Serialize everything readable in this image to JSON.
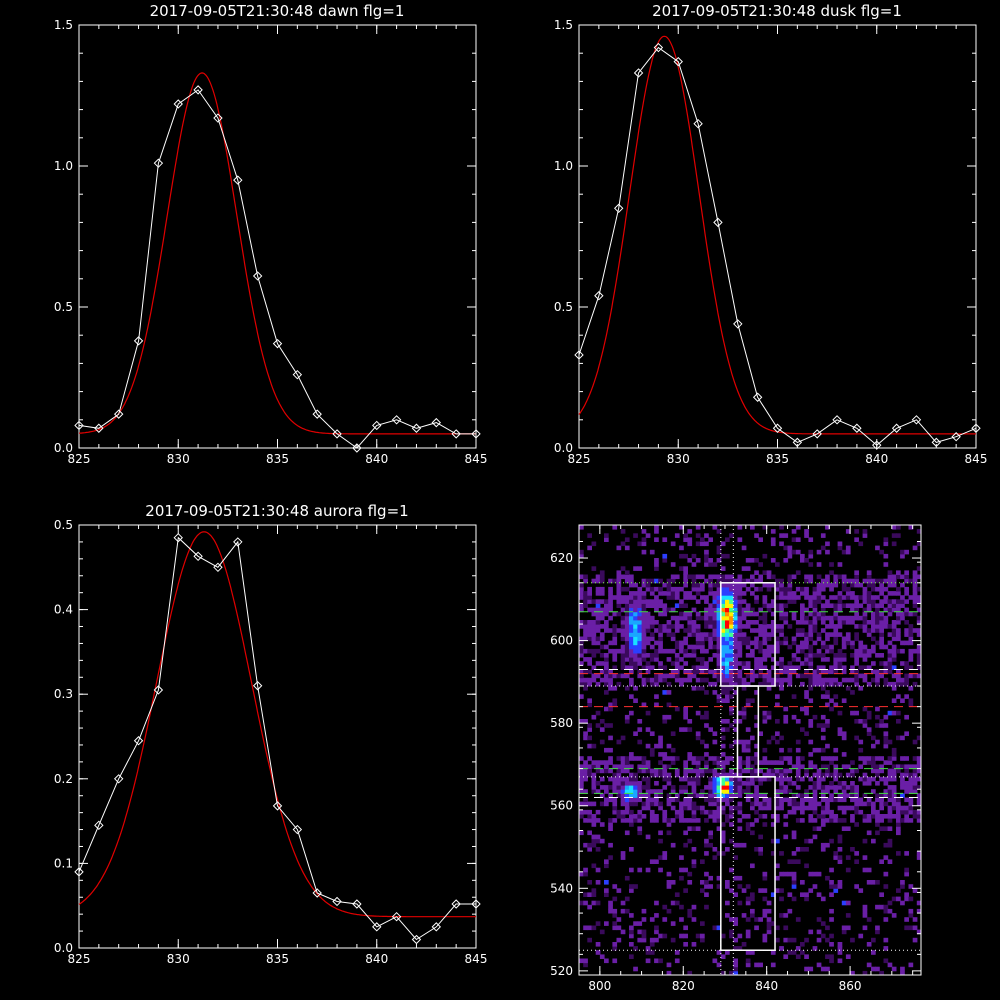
{
  "chart_data": [
    {
      "type": "line",
      "title": "2017-09-05T21:30:48 dawn flg=1",
      "xlim": [
        825,
        845
      ],
      "ylim": [
        0,
        1.5
      ],
      "xticks": [
        "825",
        "830",
        "835",
        "840",
        "845"
      ],
      "yticks": [
        "0.0",
        "0.5",
        "1.0",
        "1.5"
      ],
      "series": [
        {
          "role": "data",
          "color": "#ffffff",
          "x": [
            825,
            826,
            827,
            828,
            829,
            830,
            831,
            832,
            833,
            834,
            835,
            836,
            837,
            838,
            839,
            840,
            841,
            842,
            843,
            844,
            845
          ],
          "y": [
            0.08,
            0.07,
            0.12,
            0.38,
            1.01,
            1.22,
            1.27,
            1.17,
            0.95,
            0.61,
            0.37,
            0.26,
            0.12,
            0.05,
            0.0,
            0.08,
            0.1,
            0.07,
            0.09,
            0.05,
            0.05
          ]
        },
        {
          "role": "fit",
          "color": "#e00000",
          "gaussian": {
            "amplitude": 1.28,
            "center": 831.2,
            "sigma": 1.75,
            "baseline": 0.05
          }
        }
      ]
    },
    {
      "type": "line",
      "title": "2017-09-05T21:30:48 dusk flg=1",
      "xlim": [
        825,
        845
      ],
      "ylim": [
        0,
        1.5
      ],
      "xticks": [
        "825",
        "830",
        "835",
        "840",
        "845"
      ],
      "yticks": [
        "0.0",
        "0.5",
        "1.0",
        "1.5"
      ],
      "series": [
        {
          "role": "data",
          "color": "#ffffff",
          "x": [
            825,
            826,
            827,
            828,
            829,
            830,
            831,
            832,
            833,
            834,
            835,
            836,
            837,
            838,
            839,
            840,
            841,
            842,
            843,
            844,
            845
          ],
          "y": [
            0.33,
            0.54,
            0.85,
            1.33,
            1.42,
            1.37,
            1.15,
            0.8,
            0.44,
            0.18,
            0.07,
            0.02,
            0.05,
            0.1,
            0.07,
            0.01,
            0.07,
            0.1,
            0.02,
            0.04,
            0.07
          ]
        },
        {
          "role": "fit",
          "color": "#e00000",
          "gaussian": {
            "amplitude": 1.41,
            "center": 829.3,
            "sigma": 1.75,
            "baseline": 0.05
          }
        }
      ]
    },
    {
      "type": "line",
      "title": "2017-09-05T21:30:48 aurora flg=1",
      "xlim": [
        825,
        845
      ],
      "ylim": [
        0,
        0.5
      ],
      "xticks": [
        "825",
        "830",
        "835",
        "840",
        "845"
      ],
      "yticks": [
        "0.0",
        "0.1",
        "0.2",
        "0.3",
        "0.4",
        "0.5"
      ],
      "series": [
        {
          "role": "data",
          "color": "#ffffff",
          "x": [
            825,
            826,
            827,
            828,
            829,
            830,
            831,
            832,
            833,
            834,
            835,
            836,
            837,
            838,
            839,
            840,
            841,
            842,
            843,
            844,
            845
          ],
          "y": [
            0.09,
            0.145,
            0.2,
            0.245,
            0.305,
            0.485,
            0.463,
            0.45,
            0.48,
            0.31,
            0.168,
            0.14,
            0.065,
            0.055,
            0.052,
            0.025,
            0.037,
            0.01,
            0.025,
            0.052,
            0.052
          ]
        },
        {
          "role": "fit",
          "color": "#e00000",
          "gaussian": {
            "amplitude": 0.455,
            "center": 831.3,
            "sigma": 2.4,
            "baseline": 0.037
          }
        }
      ]
    },
    {
      "type": "heatmap",
      "title": "",
      "xlim": [
        795,
        877
      ],
      "ylim": [
        519,
        628
      ],
      "xticks": [
        "800",
        "820",
        "840",
        "860"
      ],
      "yticks": [
        "520",
        "540",
        "560",
        "580",
        "600",
        "620"
      ],
      "colormap": [
        "#000000",
        "#3a0a5c",
        "#6a1fa6",
        "#2b3fff",
        "#1aa6ff",
        "#18e3ff",
        "#40ff90",
        "#fff000",
        "#ff8800",
        "#ff0000"
      ],
      "hotspots": [
        {
          "x": 830,
          "y": 605,
          "intensity": 1.0
        },
        {
          "x": 829,
          "y": 564,
          "intensity": 1.0
        },
        {
          "x": 807,
          "y": 563,
          "intensity": 0.6
        },
        {
          "x": 808,
          "y": 602,
          "intensity": 0.55
        },
        {
          "x": 830,
          "y": 596,
          "intensity": 0.5
        }
      ],
      "boxes": [
        {
          "x": [
            829,
            842
          ],
          "y": [
            525,
            567
          ],
          "color": "#ffffff"
        },
        {
          "x": [
            829,
            842
          ],
          "y": [
            589,
            614
          ],
          "color": "#ffffff"
        },
        {
          "x": [
            833,
            838
          ],
          "y": [
            567,
            589
          ],
          "color": "#ffffff"
        }
      ],
      "hlines": [
        {
          "y": 614,
          "color": "#7fff3f",
          "style": "dotted"
        },
        {
          "y": 607,
          "color": "#44dd44",
          "style": "dashed"
        },
        {
          "y": 593,
          "color": "#ffffff",
          "style": "dashed"
        },
        {
          "y": 592,
          "color": "#ff3030",
          "style": "dashed"
        },
        {
          "y": 589,
          "color": "#ffffff",
          "style": "dotted"
        },
        {
          "y": 584,
          "color": "#ff3030",
          "style": "dashed"
        },
        {
          "y": 569,
          "color": "#44dd44",
          "style": "dashed"
        },
        {
          "y": 567,
          "color": "#ffffff",
          "style": "dotted"
        },
        {
          "y": 563,
          "color": "#44dd44",
          "style": "dashed"
        },
        {
          "y": 562,
          "color": "#ffffff",
          "style": "dashed"
        },
        {
          "y": 525,
          "color": "#ffffff",
          "style": "dotted"
        }
      ],
      "vlines": [
        {
          "x": 829,
          "color": "#ffffff",
          "style": "dotted"
        },
        {
          "x": 832,
          "color": "#ffffff",
          "style": "dotted"
        }
      ]
    }
  ]
}
